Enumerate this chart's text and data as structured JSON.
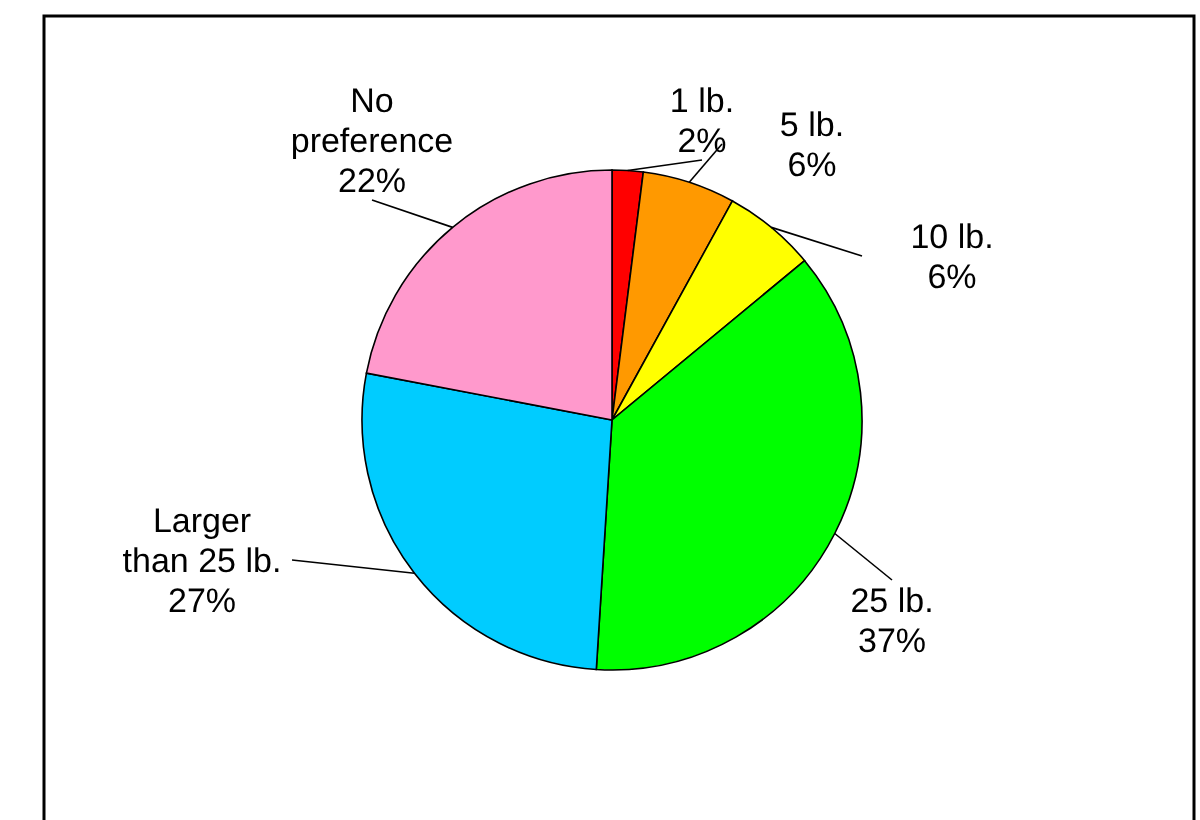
{
  "chart_data": {
    "type": "pie",
    "categories": [
      "1 lb.",
      "5 lb.",
      "10 lb.",
      "25 lb.",
      "Larger\nthan 25 lb.",
      "No\npreference"
    ],
    "values": [
      2,
      6,
      6,
      37,
      27,
      22
    ],
    "colors": [
      "#ff0000",
      "#ff9900",
      "#ffff00",
      "#00ff00",
      "#00ccff",
      "#ff99cc"
    ],
    "value_labels": [
      "2%",
      "6%",
      "6%",
      "37%",
      "27%",
      "22%"
    ]
  }
}
